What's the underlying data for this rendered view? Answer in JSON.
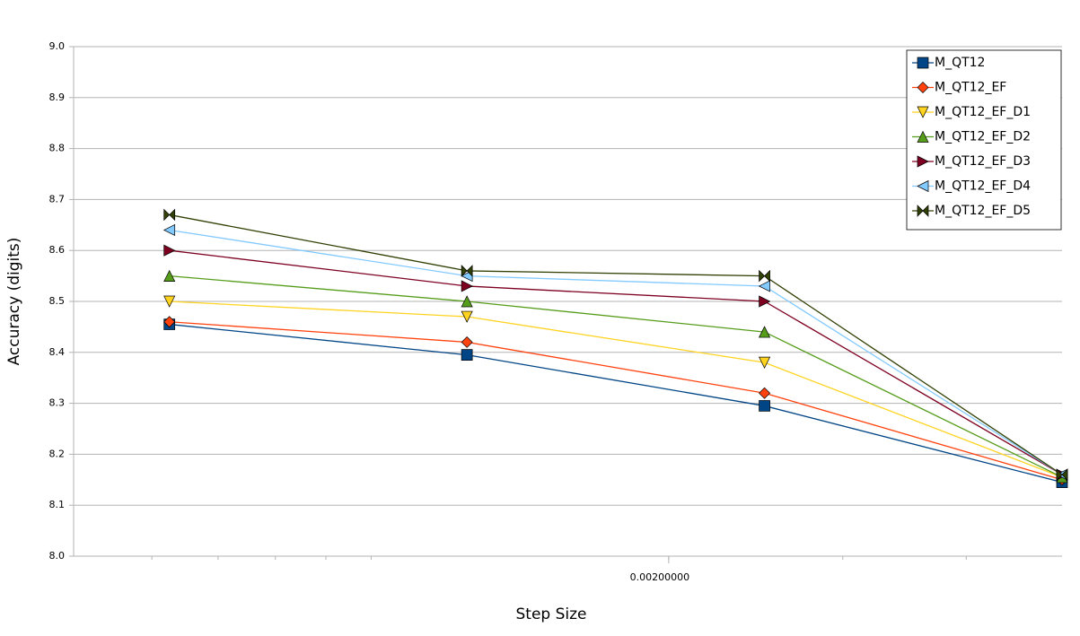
{
  "chart_data": {
    "type": "line",
    "x_label": "Step Size",
    "y_label": "Accuracy (digits)",
    "x": [
      0.000625,
      0.00125,
      0.0025,
      0.005
    ],
    "xlim": [
      0.0005,
      0.005
    ],
    "xscale": "log",
    "xticks": [
      {
        "value": 0.002,
        "label": "0.00200000"
      }
    ],
    "ylim": [
      8.0,
      9.0
    ],
    "yticks": [
      {
        "value": 8.0,
        "label": "8.0"
      },
      8.1,
      8.2,
      8.3,
      8.4,
      8.5,
      8.6,
      8.7,
      8.8,
      8.9,
      {
        "value": 9.0,
        "label": "9.0"
      }
    ],
    "grid": true,
    "legend": "top-right",
    "series": [
      {
        "name": "M_QT12",
        "color": "#004586",
        "marker": "square",
        "values": [
          8.455,
          8.395,
          8.295,
          8.145
        ]
      },
      {
        "name": "M_QT12_EF",
        "color": "#ff420e",
        "marker": "diamond",
        "values": [
          8.46,
          8.42,
          8.32,
          8.15
        ]
      },
      {
        "name": "M_QT12_EF_D1",
        "color": "#ffd320",
        "marker": "triangle-down",
        "values": [
          8.5,
          8.47,
          8.38,
          8.155
        ]
      },
      {
        "name": "M_QT12_EF_D2",
        "color": "#579d1c",
        "marker": "triangle-up",
        "values": [
          8.55,
          8.5,
          8.44,
          8.155
        ]
      },
      {
        "name": "M_QT12_EF_D3",
        "color": "#7e0021",
        "marker": "triangle-right",
        "values": [
          8.6,
          8.53,
          8.5,
          8.16
        ]
      },
      {
        "name": "M_QT12_EF_D4",
        "color": "#83caff",
        "marker": "triangle-left",
        "values": [
          8.64,
          8.55,
          8.53,
          8.16
        ]
      },
      {
        "name": "M_QT12_EF_D5",
        "color": "#314004",
        "marker": "bowtie",
        "values": [
          8.67,
          8.56,
          8.55,
          8.16
        ]
      }
    ]
  }
}
